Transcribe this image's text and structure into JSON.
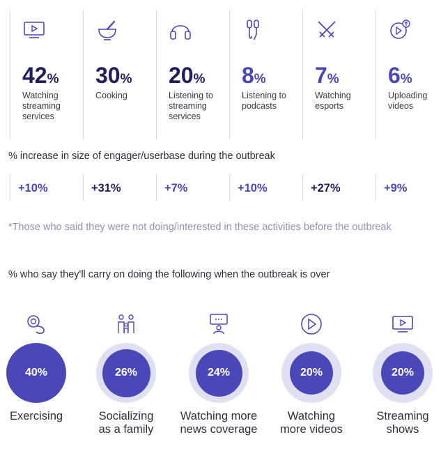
{
  "header": {
    "subtitle_increase": "% increase in size of engager/userbase during the outbreak",
    "footnote": "*Those who said they were not doing/interested in these activities before the outbreak",
    "subtitle_carry_on": "% who say they'll carry on doing the following when the outbreak is over"
  },
  "activities": [
    {
      "icon": "tv-icon",
      "value": "42",
      "unit": "%",
      "label": "Watching streaming services",
      "increase": "+10%"
    },
    {
      "icon": "mortar-pestle-icon",
      "value": "30",
      "unit": "%",
      "label": "Cooking",
      "increase": "+31%"
    },
    {
      "icon": "headphones-icon",
      "value": "20",
      "unit": "%",
      "label": "Listening to streaming services",
      "increase": "+7%"
    },
    {
      "icon": "earphones-icon",
      "value": "8",
      "unit": "%",
      "label": "Listening to podcasts",
      "increase": "+10%"
    },
    {
      "icon": "crossed-swords-icon",
      "value": "7",
      "unit": "%",
      "label": "Watching esports",
      "increase": "+27%"
    },
    {
      "icon": "upload-video-icon",
      "value": "6",
      "unit": "%",
      "label": "Uploading videos",
      "increase": "+9%"
    }
  ],
  "colors": {
    "navy": "#1f1f5c",
    "blue": "#4a47b8",
    "ring": "#dfe0f2",
    "divider": "#d6d8ea",
    "footnote": "#8f92b4"
  },
  "chart_data": {
    "type": "bar",
    "title": "% who say they'll carry on doing the following when the outbreak is over",
    "categories": [
      "Exercising",
      "Socializing as a family",
      "Watching more news coverage",
      "Watching more videos",
      "Streaming shows"
    ],
    "values": [
      40,
      26,
      24,
      20,
      20
    ],
    "value_labels": [
      "40%",
      "26%",
      "24%",
      "20%",
      "20%"
    ],
    "icons": [
      "exercise-icon",
      "family-icon",
      "news-icon",
      "play-icon",
      "tv-icon"
    ],
    "label_lines": [
      [
        "Exercising"
      ],
      [
        "Socializing",
        "as a family"
      ],
      [
        "Watching more",
        "news coverage"
      ],
      [
        "Watching",
        "more videos"
      ],
      [
        "Streaming",
        "shows"
      ]
    ],
    "ylim": [
      0,
      40
    ]
  }
}
